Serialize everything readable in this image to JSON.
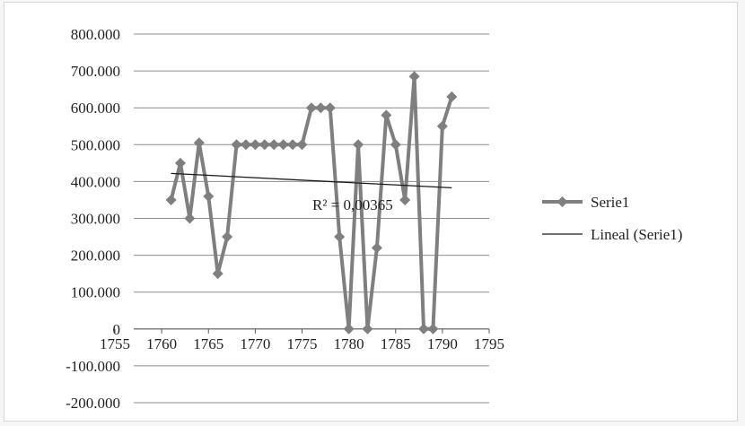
{
  "chart_data": {
    "type": "line",
    "title": "",
    "xlabel": "",
    "ylabel": "",
    "xlim": [
      1755,
      1795
    ],
    "ylim": [
      -200,
      800
    ],
    "x_ticks": [
      "1755",
      "1760",
      "1765",
      "1770",
      "1775",
      "1780",
      "1785",
      "1790",
      "1795"
    ],
    "y_ticks": [
      "800.000",
      "700.000",
      "600.000",
      "500.000",
      "400.000",
      "300.000",
      "200.000",
      "100.000",
      "0",
      "-100.000",
      "-200.000"
    ],
    "grid": true,
    "legend_position": "right",
    "series": [
      {
        "name": "Serie1",
        "color": "#7f7f7f",
        "marker": "diamond",
        "x": [
          1761,
          1762,
          1763,
          1764,
          1765,
          1766,
          1767,
          1768,
          1769,
          1770,
          1771,
          1772,
          1773,
          1774,
          1775,
          1776,
          1777,
          1778,
          1779,
          1780,
          1781,
          1782,
          1783,
          1784,
          1785,
          1786,
          1787,
          1788,
          1789,
          1790,
          1791
        ],
        "y": [
          350,
          450,
          300,
          505,
          360,
          150,
          250,
          500,
          500,
          500,
          500,
          500,
          500,
          500,
          500,
          600,
          600,
          600,
          250,
          0,
          500,
          0,
          220,
          580,
          500,
          350,
          685,
          0,
          0,
          550,
          630
        ]
      }
    ],
    "trendline": {
      "name": "Lineal (Serie1)",
      "color": "#1a1a1a",
      "x": [
        1761,
        1791
      ],
      "y": [
        422,
        383
      ],
      "annotation": "R² = 0,00365"
    }
  }
}
